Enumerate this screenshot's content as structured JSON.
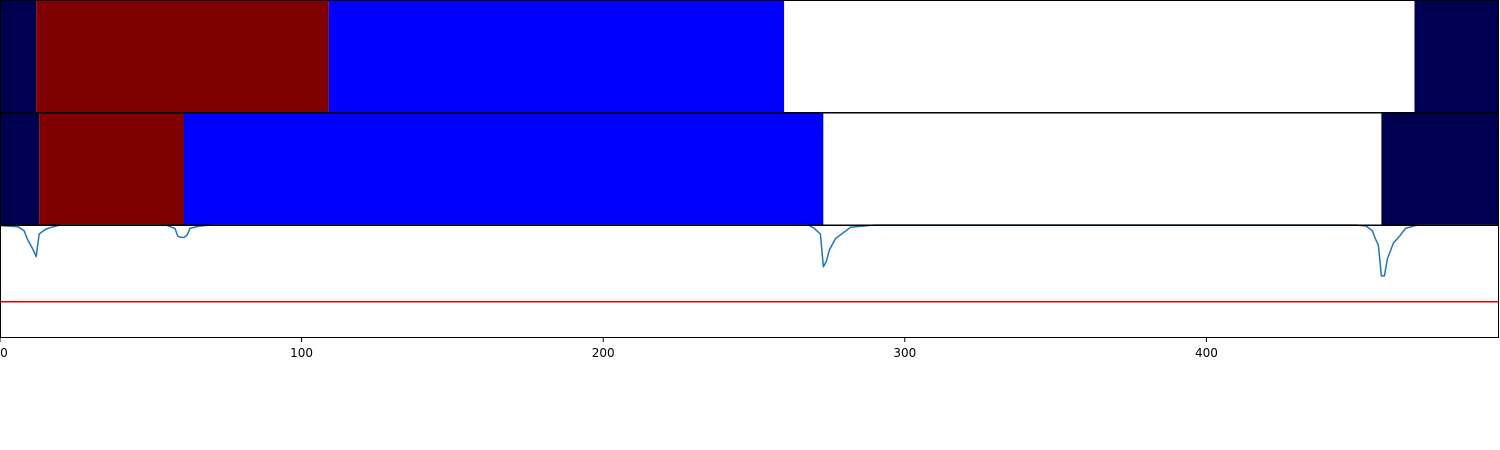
{
  "chart_data": [
    {
      "type": "bar",
      "orientation": "horizontal-segments",
      "xlim": [
        0,
        497
      ],
      "segments": [
        {
          "start": 0,
          "end": 12,
          "color": "#000050"
        },
        {
          "start": 12,
          "end": 109,
          "color": "#800000"
        },
        {
          "start": 109,
          "end": 260,
          "color": "#0000ff"
        },
        {
          "start": 260,
          "end": 469,
          "color": "#ffffff"
        },
        {
          "start": 469,
          "end": 497,
          "color": "#000050"
        }
      ]
    },
    {
      "type": "bar",
      "orientation": "horizontal-segments",
      "xlim": [
        0,
        497
      ],
      "segments": [
        {
          "start": 0,
          "end": 13,
          "color": "#000050"
        },
        {
          "start": 13,
          "end": 61,
          "color": "#800000"
        },
        {
          "start": 61,
          "end": 273,
          "color": "#0000ff"
        },
        {
          "start": 273,
          "end": 458,
          "color": "#ffffff"
        },
        {
          "start": 458,
          "end": 497,
          "color": "#000050"
        }
      ]
    },
    {
      "type": "line",
      "xlim": [
        0,
        497
      ],
      "ylim": [
        0,
        1.0
      ],
      "xticks": [
        0,
        100,
        200,
        300,
        400
      ],
      "threshold": {
        "y": 0.32,
        "color": "#e00000"
      },
      "series": [
        {
          "color": "#1f77b4",
          "points": [
            [
              0,
              0.995
            ],
            [
              6,
              0.985
            ],
            [
              8,
              0.95
            ],
            [
              9,
              0.88
            ],
            [
              11,
              0.78
            ],
            [
              12,
              0.72
            ],
            [
              13,
              0.92
            ],
            [
              15,
              0.96
            ],
            [
              17,
              0.98
            ],
            [
              20,
              1.0
            ],
            [
              55,
              1.0
            ],
            [
              58,
              0.97
            ],
            [
              59,
              0.9
            ],
            [
              60,
              0.89
            ],
            [
              61,
              0.89
            ],
            [
              62,
              0.91
            ],
            [
              63,
              0.97
            ],
            [
              66,
              0.99
            ],
            [
              70,
              1.0
            ],
            [
              268,
              1.0
            ],
            [
              270,
              0.97
            ],
            [
              272,
              0.92
            ],
            [
              273,
              0.63
            ],
            [
              274,
              0.68
            ],
            [
              275,
              0.78
            ],
            [
              277,
              0.88
            ],
            [
              280,
              0.94
            ],
            [
              282,
              0.98
            ],
            [
              290,
              1.0
            ],
            [
              450,
              1.0
            ],
            [
              453,
              0.99
            ],
            [
              455,
              0.95
            ],
            [
              456,
              0.88
            ],
            [
              457,
              0.82
            ],
            [
              458,
              0.55
            ],
            [
              459,
              0.55
            ],
            [
              460,
              0.7
            ],
            [
              462,
              0.84
            ],
            [
              464,
              0.9
            ],
            [
              466,
              0.97
            ],
            [
              470,
              1.0
            ],
            [
              497,
              1.0
            ]
          ]
        }
      ]
    }
  ]
}
